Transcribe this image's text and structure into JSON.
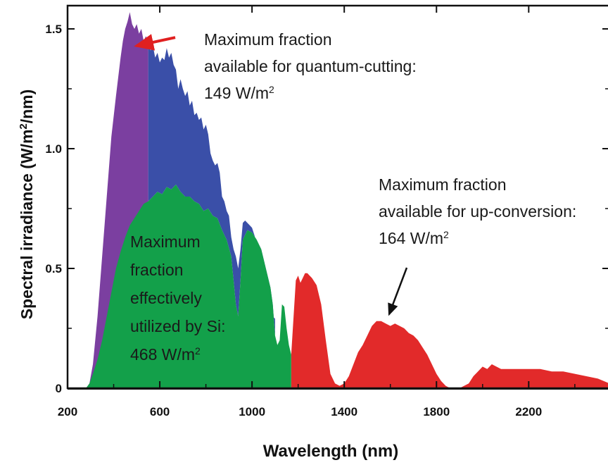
{
  "chart_data": {
    "type": "area",
    "xlabel": "Wavelength (nm)",
    "ylabel": "Spectral irradiance (W/m2/nm)",
    "ylabel_parts": [
      "Spectral irradiance (W/m",
      "2",
      "/nm)"
    ],
    "xlim": [
      200,
      2550
    ],
    "ylim": [
      0,
      1.6
    ],
    "x_ticks": [
      200,
      600,
      1000,
      1400,
      1800,
      2200
    ],
    "y_ticks": [
      {
        "value": 0,
        "label": "0"
      },
      {
        "value": 0.5,
        "label": "0.5"
      },
      {
        "value": 1.0,
        "label": "1.0"
      },
      {
        "value": 1.5,
        "label": "1.5"
      }
    ],
    "grid": false,
    "series": [
      {
        "key": "quantum_cutting",
        "color": "#7b3fa0",
        "x": [
          280,
          295,
          310,
          330,
          350,
          370,
          390,
          410,
          430,
          440,
          450,
          460,
          470,
          480,
          490,
          500,
          510,
          520,
          530,
          540,
          550
        ],
        "y": [
          0,
          0.02,
          0.1,
          0.3,
          0.55,
          0.8,
          1.05,
          1.22,
          1.38,
          1.45,
          1.5,
          1.53,
          1.57,
          1.52,
          1.5,
          1.52,
          1.48,
          1.5,
          1.45,
          1.47,
          1.44
        ]
      },
      {
        "key": "above_si",
        "color": "#3a4fa8",
        "x": [
          550,
          560,
          570,
          580,
          590,
          600,
          610,
          620,
          630,
          640,
          650,
          660,
          670,
          680,
          690,
          700,
          710,
          720,
          730,
          740,
          750,
          760,
          770,
          780,
          790,
          800,
          810,
          820,
          830,
          840,
          850,
          860,
          870,
          880,
          890,
          900,
          910,
          920,
          930,
          940,
          950,
          960,
          970,
          980,
          990,
          1000,
          1010,
          1020,
          1030,
          1040,
          1050,
          1060,
          1070,
          1080,
          1090,
          1100
        ],
        "y": [
          1.44,
          1.41,
          1.43,
          1.38,
          1.4,
          1.36,
          1.38,
          1.37,
          1.42,
          1.38,
          1.4,
          1.35,
          1.33,
          1.25,
          1.29,
          1.25,
          1.22,
          1.24,
          1.18,
          1.2,
          1.14,
          1.15,
          1.12,
          1.13,
          1.08,
          1.1,
          1.06,
          0.98,
          0.95,
          0.93,
          0.94,
          0.9,
          0.8,
          0.78,
          0.74,
          0.72,
          0.63,
          0.58,
          0.55,
          0.5,
          0.58,
          0.69,
          0.7,
          0.69,
          0.68,
          0.67,
          0.64,
          0.61,
          0.55,
          0.5,
          0.48,
          0.45,
          0.4,
          0.35,
          0.3,
          0.29
        ]
      },
      {
        "key": "si_utilized",
        "color": "#13a04a",
        "x": [
          280,
          295,
          310,
          330,
          350,
          370,
          390,
          410,
          430,
          450,
          470,
          490,
          510,
          530,
          550,
          570,
          590,
          610,
          630,
          650,
          670,
          690,
          710,
          730,
          750,
          770,
          790,
          810,
          830,
          850,
          870,
          890,
          910,
          920,
          930,
          940,
          950,
          960,
          980,
          1000,
          1020,
          1040,
          1060,
          1080,
          1090,
          1100,
          1110,
          1120,
          1130,
          1140,
          1150,
          1160,
          1170
        ],
        "y": [
          0,
          0.02,
          0.06,
          0.12,
          0.2,
          0.3,
          0.4,
          0.5,
          0.57,
          0.63,
          0.68,
          0.71,
          0.74,
          0.77,
          0.78,
          0.8,
          0.82,
          0.81,
          0.84,
          0.83,
          0.85,
          0.82,
          0.8,
          0.8,
          0.78,
          0.77,
          0.74,
          0.75,
          0.72,
          0.71,
          0.66,
          0.62,
          0.55,
          0.45,
          0.35,
          0.3,
          0.45,
          0.62,
          0.66,
          0.65,
          0.62,
          0.58,
          0.5,
          0.42,
          0.35,
          0.22,
          0.18,
          0.2,
          0.35,
          0.34,
          0.25,
          0.18,
          0.14
        ]
      },
      {
        "key": "up_conversion",
        "color": "#e22a2a",
        "x": [
          1170,
          1190,
          1200,
          1210,
          1220,
          1230,
          1240,
          1250,
          1260,
          1280,
          1300,
          1320,
          1340,
          1360,
          1380,
          1400,
          1420,
          1440,
          1460,
          1480,
          1500,
          1520,
          1540,
          1560,
          1580,
          1600,
          1620,
          1640,
          1660,
          1680,
          1700,
          1720,
          1740,
          1760,
          1780,
          1800,
          1820,
          1840,
          1860,
          1880,
          1900,
          1920,
          1940,
          1960,
          1980,
          2000,
          2020,
          2040,
          2060,
          2080,
          2100,
          2150,
          2200,
          2250,
          2300,
          2350,
          2400,
          2450,
          2500,
          2550
        ],
        "y": [
          0.14,
          0.45,
          0.47,
          0.44,
          0.46,
          0.48,
          0.48,
          0.47,
          0.46,
          0.43,
          0.35,
          0.2,
          0.06,
          0.02,
          0.01,
          0.02,
          0.05,
          0.1,
          0.15,
          0.18,
          0.22,
          0.26,
          0.28,
          0.28,
          0.27,
          0.26,
          0.27,
          0.26,
          0.25,
          0.23,
          0.22,
          0.2,
          0.17,
          0.14,
          0.1,
          0.06,
          0.03,
          0.01,
          0.0,
          0.0,
          0.0,
          0.01,
          0.02,
          0.05,
          0.07,
          0.09,
          0.08,
          0.1,
          0.09,
          0.08,
          0.08,
          0.08,
          0.08,
          0.08,
          0.07,
          0.07,
          0.06,
          0.05,
          0.04,
          0.02
        ]
      }
    ],
    "annotations": [
      {
        "key": "quantum_cutting_note",
        "lines": [
          "Maximum fraction",
          "available for quantum-cutting:",
          "149 W/m"
        ],
        "sup": "2",
        "arrow_color": "#e02020",
        "arrow_from": [
          545,
          1.47
        ],
        "arrow_to": [
          475,
          1.45
        ]
      },
      {
        "key": "si_note",
        "lines": [
          "Maximum",
          "fraction",
          "effectively",
          "utilized by Si:",
          "468 W/m"
        ],
        "sup": "2"
      },
      {
        "key": "up_conversion_note",
        "lines": [
          "Maximum fraction",
          "available for up-conversion:",
          "164 W/m"
        ],
        "sup": "2",
        "arrow_color": "#111111",
        "arrow_from": [
          1590,
          0.52
        ],
        "arrow_to": [
          1535,
          0.3
        ]
      }
    ]
  }
}
